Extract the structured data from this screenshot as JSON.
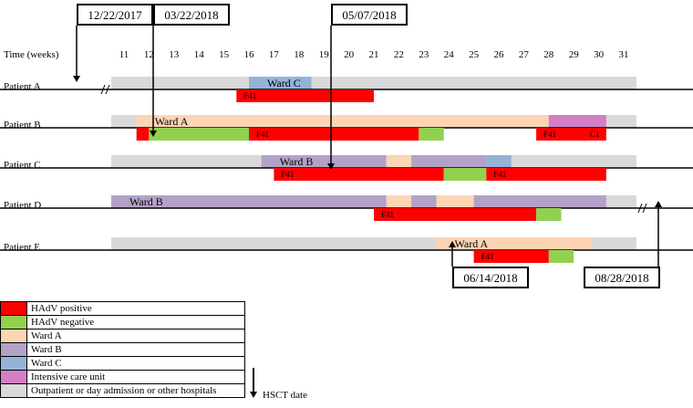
{
  "chart_data": {
    "type": "timeline",
    "axis": {
      "label": "Time (weeks)",
      "ticks": [
        "11",
        "12",
        "13",
        "14",
        "15",
        "16",
        "17",
        "18",
        "19",
        "20",
        "21",
        "22",
        "23",
        "24",
        "25",
        "26",
        "27",
        "28",
        "29",
        "30",
        "31"
      ]
    },
    "category_colors": {
      "positive": "#ff0000",
      "negative": "#92d050",
      "wardA": "#fcd5b5",
      "wardB": "#b3a2c7",
      "wardC": "#95b3d7",
      "icu": "#d47fc5",
      "outpatient": "#d9d9d9"
    },
    "patients": [
      {
        "name": "Patient A",
        "location": [
          {
            "start": 11,
            "end": 31,
            "cat": "outpatient"
          },
          {
            "start": 16,
            "end": 18.5,
            "cat": "wardC",
            "label": "Ward C"
          }
        ],
        "infection": [
          {
            "start": 15.5,
            "end": 21,
            "cat": "positive",
            "label": "F41"
          }
        ]
      },
      {
        "name": "Patient B",
        "location": [
          {
            "start": 11,
            "end": 31,
            "cat": "outpatient"
          },
          {
            "start": 11.5,
            "end": 28,
            "cat": "wardA",
            "label": "Ward A"
          },
          {
            "start": 28,
            "end": 30.3,
            "cat": "icu"
          }
        ],
        "infection": [
          {
            "start": 11.5,
            "end": 12,
            "cat": "positive"
          },
          {
            "start": 12,
            "end": 16,
            "cat": "negative"
          },
          {
            "start": 16,
            "end": 22.8,
            "cat": "positive",
            "label": "F41"
          },
          {
            "start": 22.8,
            "end": 23.8,
            "cat": "negative"
          },
          {
            "start": 27.5,
            "end": 30.3,
            "cat": "positive",
            "label": "F41",
            "label2": "C1"
          }
        ]
      },
      {
        "name": "Patient C",
        "location": [
          {
            "start": 11,
            "end": 31,
            "cat": "outpatient"
          },
          {
            "start": 16.5,
            "end": 21.5,
            "cat": "wardB",
            "label": "Ward B"
          },
          {
            "start": 21.5,
            "end": 22.5,
            "cat": "wardA"
          },
          {
            "start": 22.5,
            "end": 25.5,
            "cat": "wardB"
          },
          {
            "start": 25.5,
            "end": 26.5,
            "cat": "wardC"
          }
        ],
        "infection": [
          {
            "start": 17,
            "end": 23.8,
            "cat": "positive",
            "label": "F41"
          },
          {
            "start": 23.8,
            "end": 25.5,
            "cat": "negative"
          },
          {
            "start": 25.5,
            "end": 30.3,
            "cat": "positive",
            "label": "F41"
          }
        ]
      },
      {
        "name": "Patient D",
        "location": [
          {
            "start": 11,
            "end": 31,
            "cat": "outpatient"
          },
          {
            "start": 11,
            "end": 21.5,
            "cat": "wardB",
            "label": "Ward B"
          },
          {
            "start": 21.5,
            "end": 22.5,
            "cat": "wardA"
          },
          {
            "start": 22.5,
            "end": 23.5,
            "cat": "wardB"
          },
          {
            "start": 23.5,
            "end": 25,
            "cat": "wardA"
          },
          {
            "start": 25,
            "end": 30.3,
            "cat": "wardB"
          }
        ],
        "infection": [
          {
            "start": 21,
            "end": 27.5,
            "cat": "positive",
            "label": "F41"
          },
          {
            "start": 27.5,
            "end": 28.5,
            "cat": "negative"
          }
        ]
      },
      {
        "name": "Patient E",
        "location": [
          {
            "start": 11,
            "end": 31,
            "cat": "outpatient"
          },
          {
            "start": 23.5,
            "end": 29.7,
            "cat": "wardA",
            "label": "Ward A"
          }
        ],
        "infection": [
          {
            "start": 25,
            "end": 28,
            "cat": "positive",
            "label": "F41"
          },
          {
            "start": 28,
            "end": 29,
            "cat": "negative"
          }
        ]
      }
    ],
    "hsct_dates": [
      {
        "label": "12/22/2017",
        "patient": "Patient A",
        "week": 9.5
      },
      {
        "label": "03/22/2018",
        "patient": "Patient B",
        "week": 12.2
      },
      {
        "label": "05/07/2018",
        "patient": "Patient C",
        "week": 18.8
      },
      {
        "label": "06/14/2018",
        "patient": "Patient E",
        "week": 24
      },
      {
        "label": "08/28/2018",
        "patient": "Patient D",
        "week": 32.2
      }
    ],
    "legend": [
      {
        "label": "HAdV positive",
        "color": "#ff0000"
      },
      {
        "label": "HAdV negative",
        "color": "#92d050"
      },
      {
        "label": "Ward A",
        "color": "#fcd5b5"
      },
      {
        "label": "Ward B",
        "color": "#b3a2c7"
      },
      {
        "label": "Ward C",
        "color": "#95b3d7"
      },
      {
        "label": "Intensive care unit",
        "color": "#d47fc5"
      },
      {
        "label": "Outpatient  or day admission or other hospitals",
        "color": "#d9d9d9"
      }
    ],
    "hsct_legend": "HSCT date"
  }
}
